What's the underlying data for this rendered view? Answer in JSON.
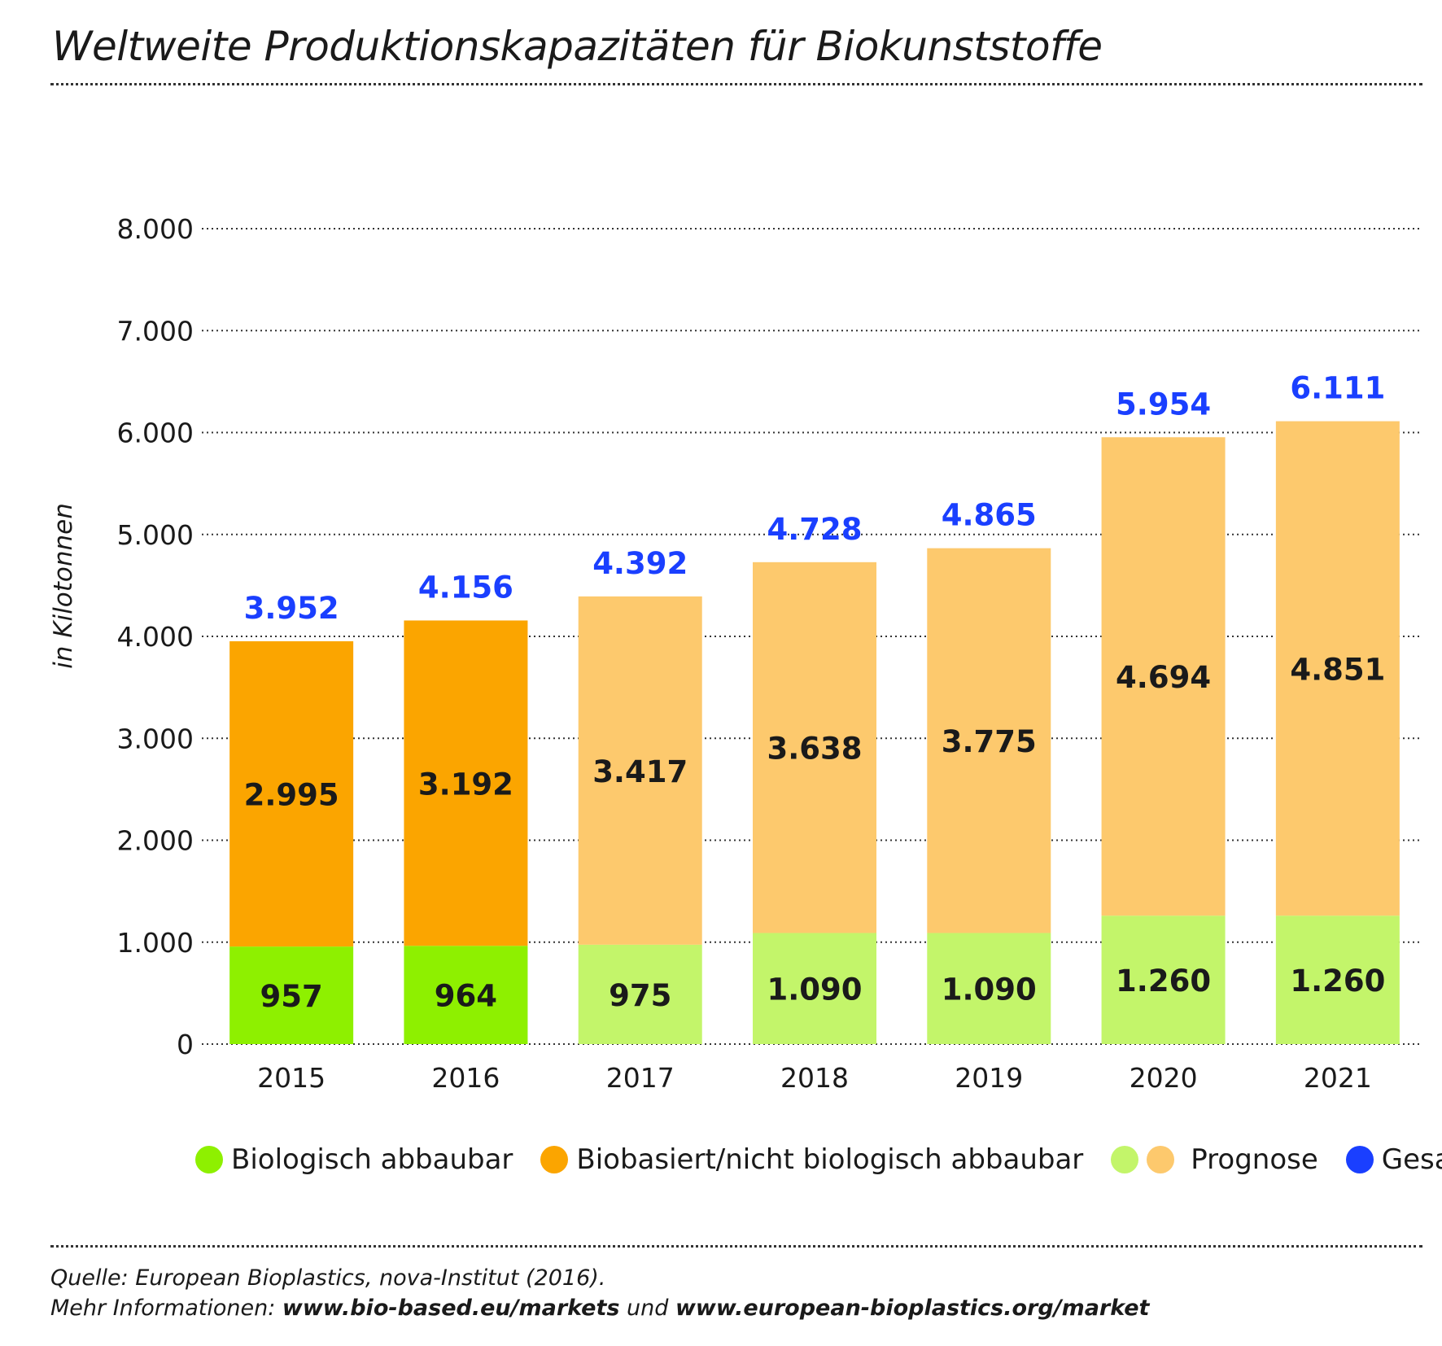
{
  "title": "Weltweite Produktionskapazitäten für Biokunststoffe",
  "colors": {
    "biologisch": "#8ef000",
    "biobasiert": "#fba500",
    "prognose_green": "#c3f56a",
    "prognose_orange": "#fdc96d",
    "gesamt": "#1a3fff"
  },
  "legend": {
    "biologisch": "Biologisch abbaubar",
    "biobasiert": "Biobasiert/nicht biologisch abbaubar",
    "prognose": "Prognose",
    "gesamt": "Gesamt"
  },
  "source": {
    "line1": "Quelle: European Bioplastics, nova-Institut (2016).",
    "line2_prefix": "Mehr Informationen: ",
    "link1": "www.bio-based.eu/markets",
    "line2_mid": " und ",
    "link2": "www.european-bioplastics.org/market"
  },
  "chart_data": {
    "type": "bar",
    "stacked": true,
    "ylabel": "in Kilotonnen",
    "ylim": [
      0,
      8000
    ],
    "yticks": [
      0,
      1000,
      2000,
      3000,
      4000,
      5000,
      6000,
      7000,
      8000
    ],
    "ytick_labels": [
      "0",
      "1.000",
      "2.000",
      "3.000",
      "4.000",
      "5.000",
      "6.000",
      "7.000",
      "8.000"
    ],
    "grid": "horizontal dotted",
    "legend_position": "bottom",
    "categories": [
      "2015",
      "2016",
      "2017",
      "2018",
      "2019",
      "2020",
      "2021"
    ],
    "prognose_from_index": 2,
    "series": [
      {
        "name": "Biologisch abbaubar",
        "values": [
          957,
          964,
          975,
          1090,
          1090,
          1260,
          1260
        ],
        "labels": [
          "957",
          "964",
          "975",
          "1.090",
          "1.090",
          "1.260",
          "1.260"
        ]
      },
      {
        "name": "Biobasiert/nicht biologisch abbaubar",
        "values": [
          2995,
          3192,
          3417,
          3638,
          3775,
          4694,
          4851
        ],
        "labels": [
          "2.995",
          "3.192",
          "3.417",
          "3.638",
          "3.775",
          "4.694",
          "4.851"
        ]
      }
    ],
    "totals": {
      "name": "Gesamt",
      "values": [
        3952,
        4156,
        4392,
        4728,
        4865,
        5954,
        6111
      ],
      "labels": [
        "3.952",
        "4.156",
        "4.392",
        "4.728",
        "4.865",
        "5.954",
        "6.111"
      ]
    }
  }
}
